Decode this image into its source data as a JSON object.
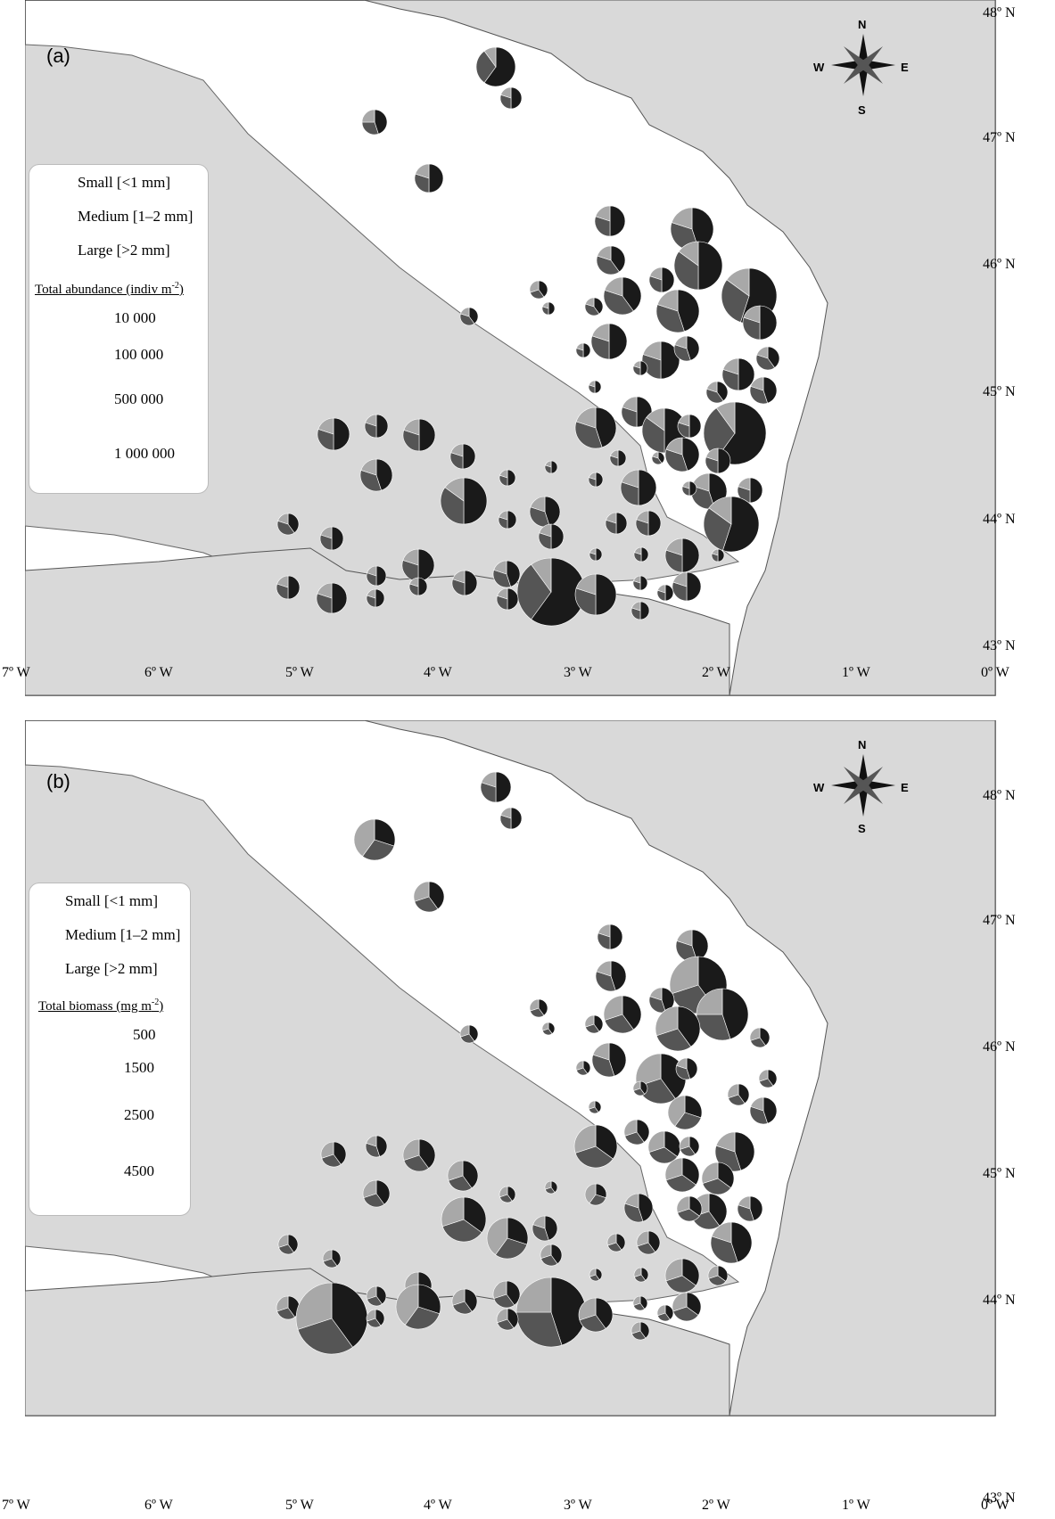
{
  "panels": [
    {
      "letter": "(a)",
      "legend": {
        "classes": [
          "Small [<1 mm]",
          "Medium [1–2 mm]",
          "Large [>2 mm]"
        ],
        "heading": "Total abundance (indiv m",
        "heading_sup": "-2",
        "heading_close": ")",
        "sizes": [
          "10 000",
          "100 000",
          "500 000",
          "1 000 000"
        ]
      }
    },
    {
      "letter": "(b)",
      "legend": {
        "classes": [
          "Small [<1 mm]",
          "Medium [1–2 mm]",
          "Large [>2 mm]"
        ],
        "heading": "Total biomass (mg m",
        "heading_sup": "-2",
        "heading_close": ")",
        "sizes": [
          "500",
          "1500",
          "2500",
          "4500"
        ]
      }
    }
  ],
  "compass": {
    "n": "N",
    "s": "S",
    "e": "E",
    "w": "W"
  },
  "lat_labels": [
    "48º N",
    "47º N",
    "46º N",
    "45º N",
    "44º N",
    "43º N"
  ],
  "lon_labels": [
    "7º W",
    "6º W",
    "5º W",
    "4º W",
    "3º W",
    "2º W",
    "1º W",
    "0º W"
  ],
  "colors": {
    "small": "#1a1a1a",
    "medium": "#555555",
    "large": "#a8a8a8",
    "land": "#d9d9d9",
    "sea": "#ffffff"
  }
}
